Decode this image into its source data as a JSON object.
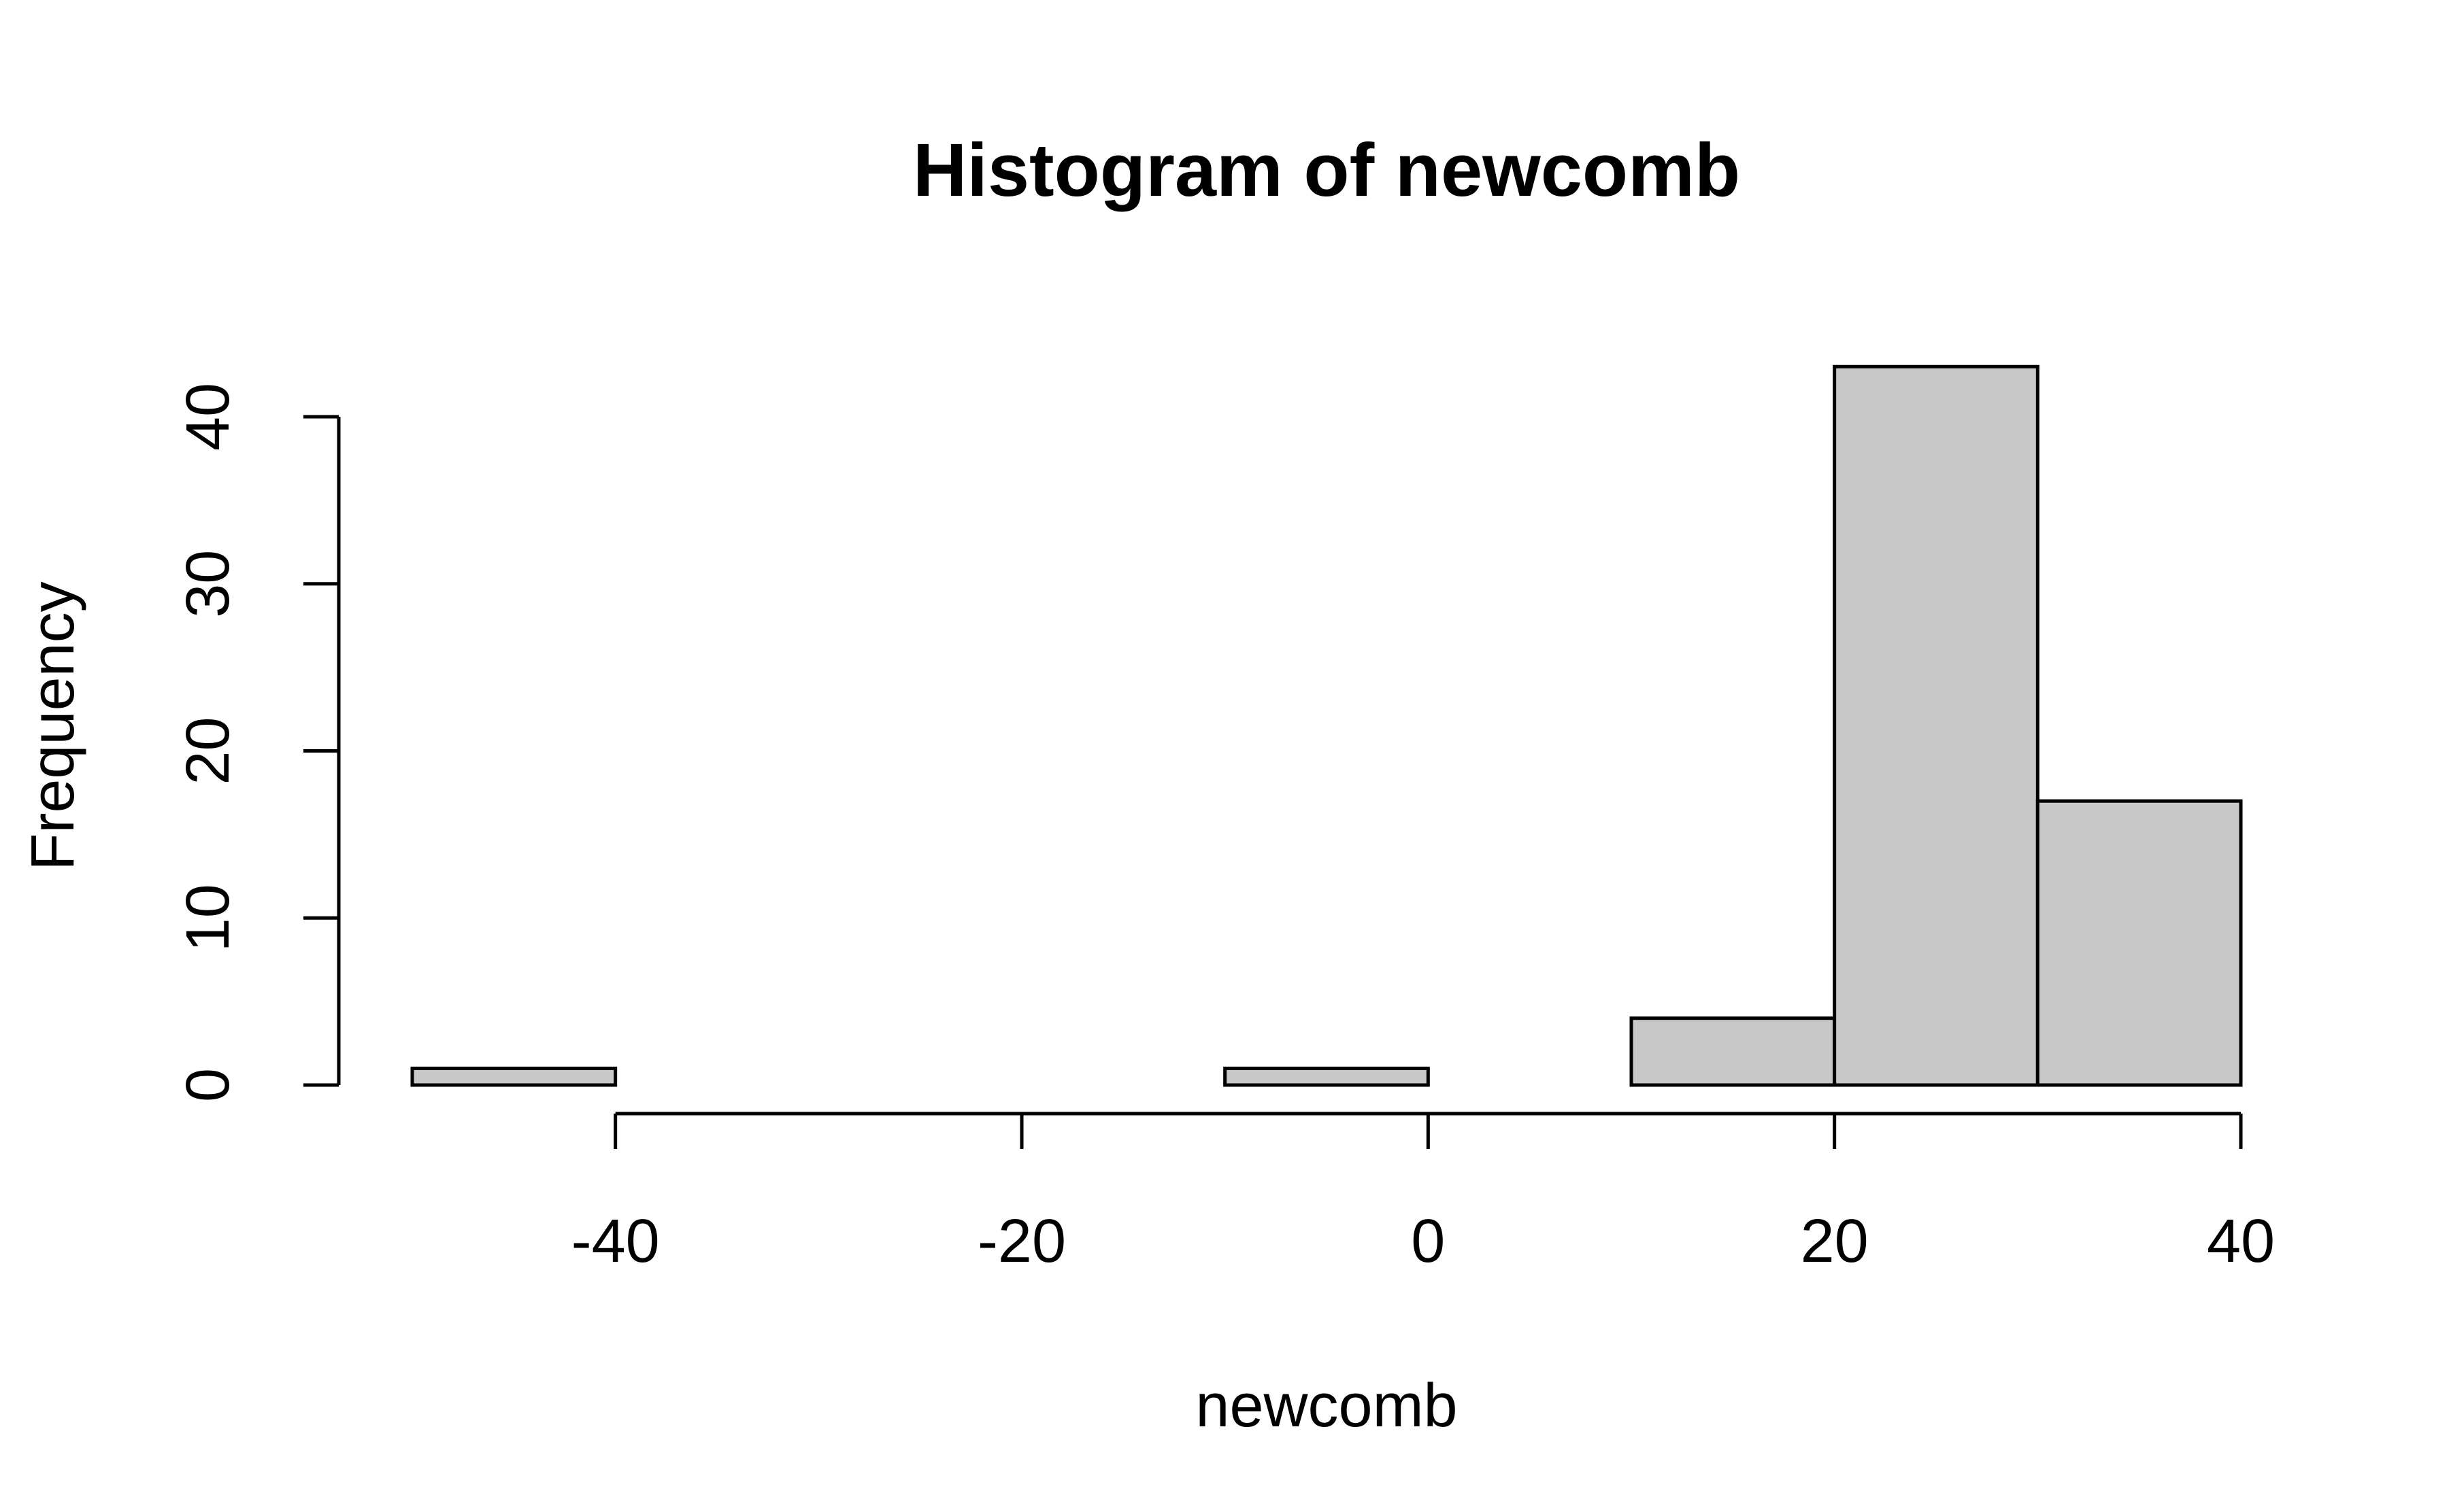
{
  "chart_data": {
    "type": "bar",
    "title": "Histogram of newcomb",
    "xlabel": "newcomb",
    "ylabel": "Frequency",
    "bins": [
      {
        "from": -50,
        "to": -40,
        "count": 1
      },
      {
        "from": -40,
        "to": -30,
        "count": 0
      },
      {
        "from": -30,
        "to": -20,
        "count": 0
      },
      {
        "from": -20,
        "to": -10,
        "count": 0
      },
      {
        "from": -10,
        "to": 0,
        "count": 1
      },
      {
        "from": 0,
        "to": 10,
        "count": 0
      },
      {
        "from": 10,
        "to": 20,
        "count": 4
      },
      {
        "from": 20,
        "to": 30,
        "count": 43
      },
      {
        "from": 30,
        "to": 40,
        "count": 17
      }
    ],
    "xlim": [
      -50,
      40
    ],
    "ylim": [
      0,
      43
    ],
    "xticks": [
      -40,
      -20,
      0,
      20,
      40
    ],
    "xtick_labels": [
      "-40",
      "-20",
      "0",
      "20",
      "40"
    ],
    "yticks": [
      0,
      10,
      20,
      30,
      40
    ],
    "ytick_labels": [
      "0",
      "10",
      "20",
      "30",
      "40"
    ],
    "bar_color": "#c8c8c8",
    "border_color": "#000000",
    "grid": false
  }
}
